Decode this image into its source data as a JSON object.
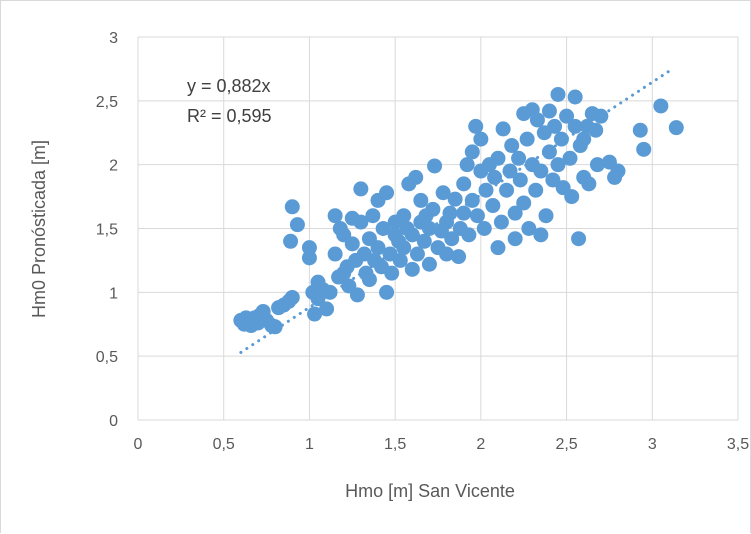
{
  "chart_data": {
    "type": "scatter",
    "xlabel": "Hmo [m] San Vicente",
    "ylabel": "Hm0 Pronósticada [m]",
    "xlim": [
      0,
      3.5
    ],
    "ylim": [
      0,
      3
    ],
    "x_ticks": [
      "0",
      "0,5",
      "1",
      "1,5",
      "2",
      "2,5",
      "3",
      "3,5"
    ],
    "y_ticks": [
      "0",
      "0,5",
      "1",
      "1,5",
      "2",
      "2,5",
      "3"
    ],
    "grid": true,
    "legend": "none",
    "marker_color": "#5b9bd5",
    "trendline": {
      "type": "linear",
      "slope": 0.882,
      "x_range": [
        0.6,
        3.12
      ],
      "style": "dotted",
      "color": "#5b9bd5"
    },
    "equation": "y = 0,882x",
    "r_squared": "R² = 0,595",
    "series": [
      {
        "points": [
          [
            0.6,
            0.78
          ],
          [
            0.62,
            0.75
          ],
          [
            0.63,
            0.8
          ],
          [
            0.65,
            0.77
          ],
          [
            0.66,
            0.74
          ],
          [
            0.68,
            0.8
          ],
          [
            0.7,
            0.76
          ],
          [
            0.71,
            0.82
          ],
          [
            0.73,
            0.85
          ],
          [
            0.75,
            0.78
          ],
          [
            0.78,
            0.74
          ],
          [
            0.8,
            0.73
          ],
          [
            0.82,
            0.88
          ],
          [
            0.85,
            0.9
          ],
          [
            0.88,
            0.93
          ],
          [
            0.9,
            0.96
          ],
          [
            0.89,
            1.4
          ],
          [
            0.9,
            1.67
          ],
          [
            0.93,
            1.53
          ],
          [
            1.0,
            1.27
          ],
          [
            1.0,
            1.35
          ],
          [
            1.02,
            1.0
          ],
          [
            1.03,
            0.83
          ],
          [
            1.05,
            1.08
          ],
          [
            1.05,
            0.95
          ],
          [
            1.08,
            1.02
          ],
          [
            1.1,
            0.87
          ],
          [
            1.12,
            1.0
          ],
          [
            1.15,
            1.6
          ],
          [
            1.15,
            1.3
          ],
          [
            1.17,
            1.12
          ],
          [
            1.18,
            1.5
          ],
          [
            1.2,
            1.15
          ],
          [
            1.2,
            1.45
          ],
          [
            1.22,
            1.2
          ],
          [
            1.23,
            1.05
          ],
          [
            1.25,
            1.38
          ],
          [
            1.25,
            1.58
          ],
          [
            1.27,
            1.25
          ],
          [
            1.28,
            0.98
          ],
          [
            1.3,
            1.55
          ],
          [
            1.3,
            1.81
          ],
          [
            1.32,
            1.3
          ],
          [
            1.33,
            1.15
          ],
          [
            1.35,
            1.42
          ],
          [
            1.35,
            1.1
          ],
          [
            1.37,
            1.6
          ],
          [
            1.38,
            1.25
          ],
          [
            1.4,
            1.72
          ],
          [
            1.4,
            1.35
          ],
          [
            1.42,
            1.2
          ],
          [
            1.43,
            1.5
          ],
          [
            1.45,
            1.78
          ],
          [
            1.45,
            1.0
          ],
          [
            1.47,
            1.3
          ],
          [
            1.48,
            1.15
          ],
          [
            1.5,
            1.45
          ],
          [
            1.5,
            1.55
          ],
          [
            1.52,
            1.4
          ],
          [
            1.53,
            1.25
          ],
          [
            1.55,
            1.6
          ],
          [
            1.55,
            1.35
          ],
          [
            1.57,
            1.5
          ],
          [
            1.58,
            1.85
          ],
          [
            1.6,
            1.18
          ],
          [
            1.6,
            1.45
          ],
          [
            1.62,
            1.9
          ],
          [
            1.63,
            1.3
          ],
          [
            1.65,
            1.55
          ],
          [
            1.65,
            1.72
          ],
          [
            1.67,
            1.4
          ],
          [
            1.68,
            1.6
          ],
          [
            1.7,
            1.22
          ],
          [
            1.7,
            1.5
          ],
          [
            1.72,
            1.65
          ],
          [
            1.73,
            1.99
          ],
          [
            1.75,
            1.35
          ],
          [
            1.77,
            1.48
          ],
          [
            1.78,
            1.78
          ],
          [
            1.8,
            1.3
          ],
          [
            1.8,
            1.55
          ],
          [
            1.82,
            1.62
          ],
          [
            1.83,
            1.42
          ],
          [
            1.85,
            1.73
          ],
          [
            1.87,
            1.28
          ],
          [
            1.88,
            1.5
          ],
          [
            1.9,
            1.85
          ],
          [
            1.9,
            1.62
          ],
          [
            1.92,
            2.0
          ],
          [
            1.93,
            1.45
          ],
          [
            1.95,
            2.1
          ],
          [
            1.95,
            1.72
          ],
          [
            1.97,
            2.3
          ],
          [
            1.98,
            1.6
          ],
          [
            2.0,
            2.2
          ],
          [
            2.0,
            1.95
          ],
          [
            2.02,
            1.5
          ],
          [
            2.03,
            1.8
          ],
          [
            2.05,
            2.0
          ],
          [
            2.07,
            1.68
          ],
          [
            2.08,
            1.9
          ],
          [
            2.1,
            2.05
          ],
          [
            2.1,
            1.35
          ],
          [
            2.12,
            1.55
          ],
          [
            2.13,
            2.28
          ],
          [
            2.15,
            1.8
          ],
          [
            2.17,
            1.95
          ],
          [
            2.18,
            2.15
          ],
          [
            2.2,
            1.42
          ],
          [
            2.2,
            1.62
          ],
          [
            2.22,
            2.05
          ],
          [
            2.23,
            1.88
          ],
          [
            2.25,
            2.4
          ],
          [
            2.25,
            1.7
          ],
          [
            2.27,
            2.2
          ],
          [
            2.28,
            1.5
          ],
          [
            2.3,
            2.0
          ],
          [
            2.3,
            2.43
          ],
          [
            2.32,
            1.8
          ],
          [
            2.33,
            2.35
          ],
          [
            2.35,
            1.95
          ],
          [
            2.35,
            1.45
          ],
          [
            2.37,
            2.25
          ],
          [
            2.38,
            1.6
          ],
          [
            2.4,
            2.1
          ],
          [
            2.4,
            2.42
          ],
          [
            2.42,
            1.88
          ],
          [
            2.43,
            2.3
          ],
          [
            2.45,
            2.55
          ],
          [
            2.45,
            2.0
          ],
          [
            2.47,
            2.2
          ],
          [
            2.48,
            1.82
          ],
          [
            2.5,
            2.38
          ],
          [
            2.52,
            2.05
          ],
          [
            2.53,
            1.75
          ],
          [
            2.55,
            2.53
          ],
          [
            2.55,
            2.3
          ],
          [
            2.57,
            1.42
          ],
          [
            2.58,
            2.15
          ],
          [
            2.6,
            1.9
          ],
          [
            2.6,
            2.2
          ],
          [
            2.62,
            2.3
          ],
          [
            2.63,
            1.85
          ],
          [
            2.65,
            2.4
          ],
          [
            2.67,
            2.27
          ],
          [
            2.68,
            2.0
          ],
          [
            2.7,
            2.38
          ],
          [
            2.75,
            2.02
          ],
          [
            2.78,
            1.9
          ],
          [
            2.8,
            1.95
          ],
          [
            2.93,
            2.27
          ],
          [
            2.95,
            2.12
          ],
          [
            3.05,
            2.46
          ],
          [
            3.14,
            2.29
          ]
        ]
      }
    ]
  }
}
